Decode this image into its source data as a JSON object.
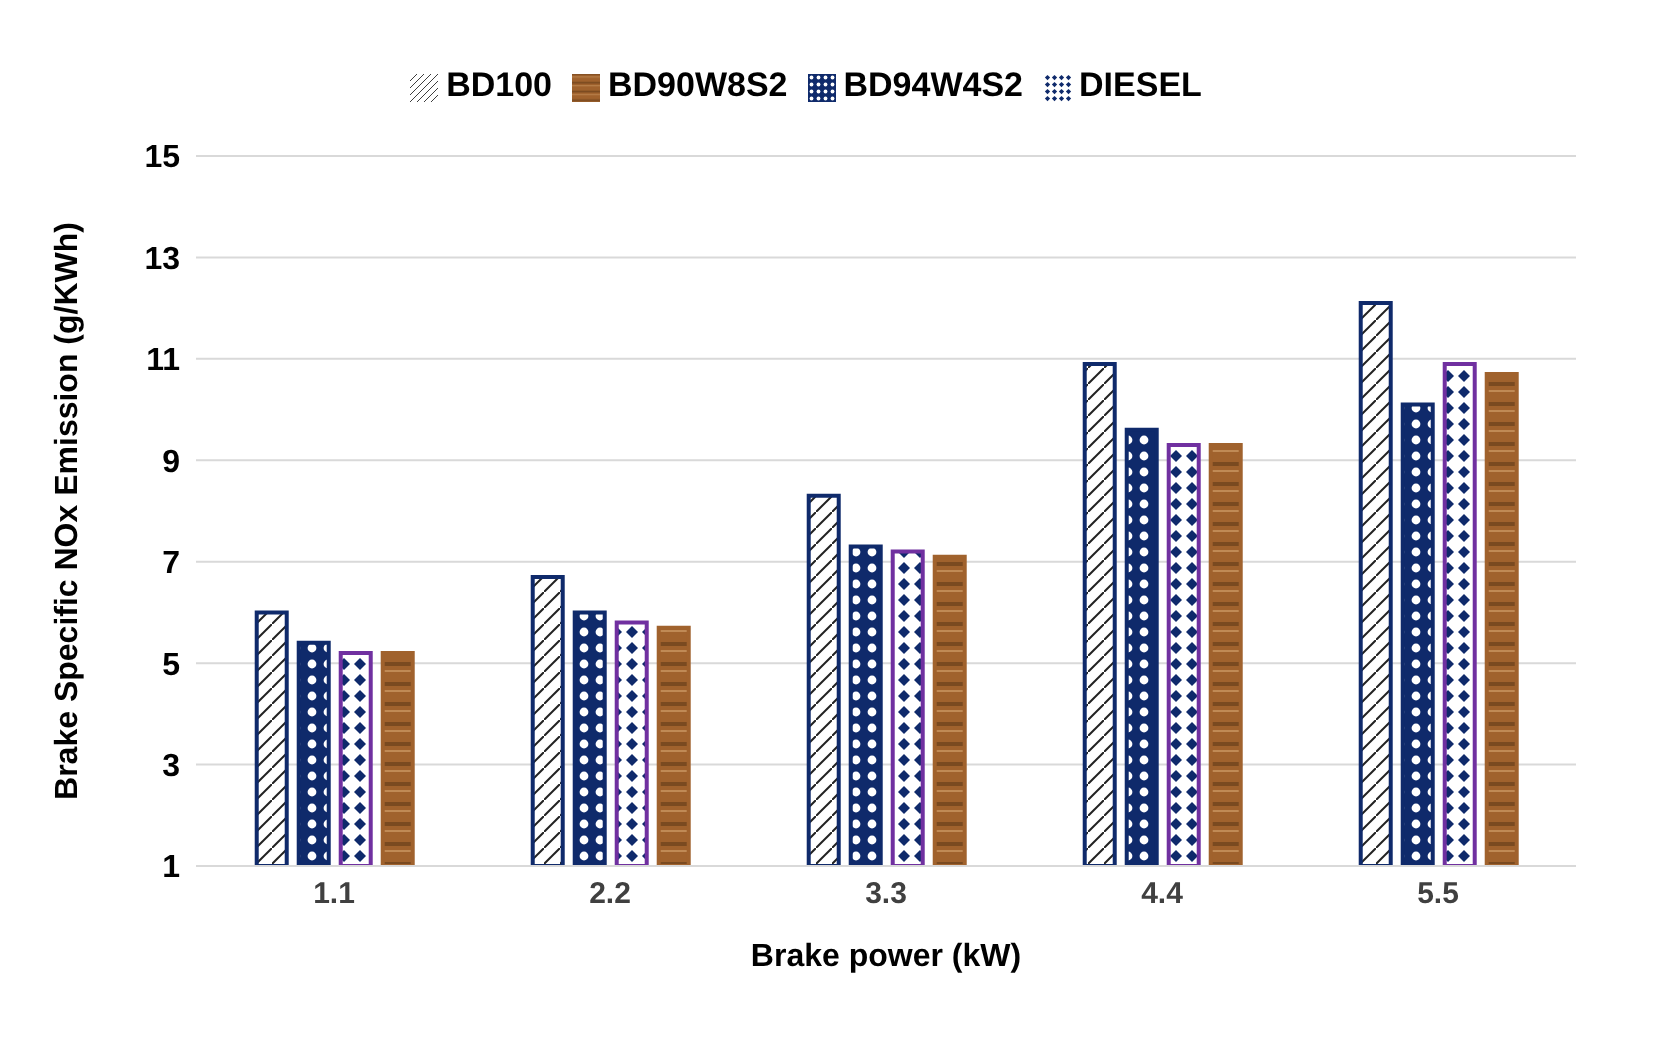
{
  "chart_data": {
    "type": "bar",
    "xlabel": "Brake power (kW)",
    "ylabel": "Brake Specific NOx Emission (g/KWh)",
    "categories": [
      "1.1",
      "2.2",
      "3.3",
      "4.4",
      "5.5"
    ],
    "series": [
      {
        "name": "BD100",
        "color": "#0f2a6b",
        "values": [
          6.0,
          6.7,
          8.3,
          10.9,
          12.1
        ]
      },
      {
        "name": "BD94W4S2",
        "color": "#0f2a6b",
        "values": [
          5.4,
          6.0,
          7.3,
          9.6,
          10.1
        ]
      },
      {
        "name": "DIESEL",
        "color": "#7030a0",
        "values": [
          5.2,
          5.8,
          7.2,
          9.3,
          10.9
        ]
      },
      {
        "name": "BD90W8S2",
        "color": "#a0622d",
        "values": [
          5.2,
          5.7,
          7.1,
          9.3,
          10.7
        ]
      }
    ],
    "ylim": [
      1,
      15
    ],
    "yticks": [
      1,
      3,
      5,
      7,
      9,
      11,
      13,
      15
    ],
    "grid": "y",
    "legend": "top"
  }
}
